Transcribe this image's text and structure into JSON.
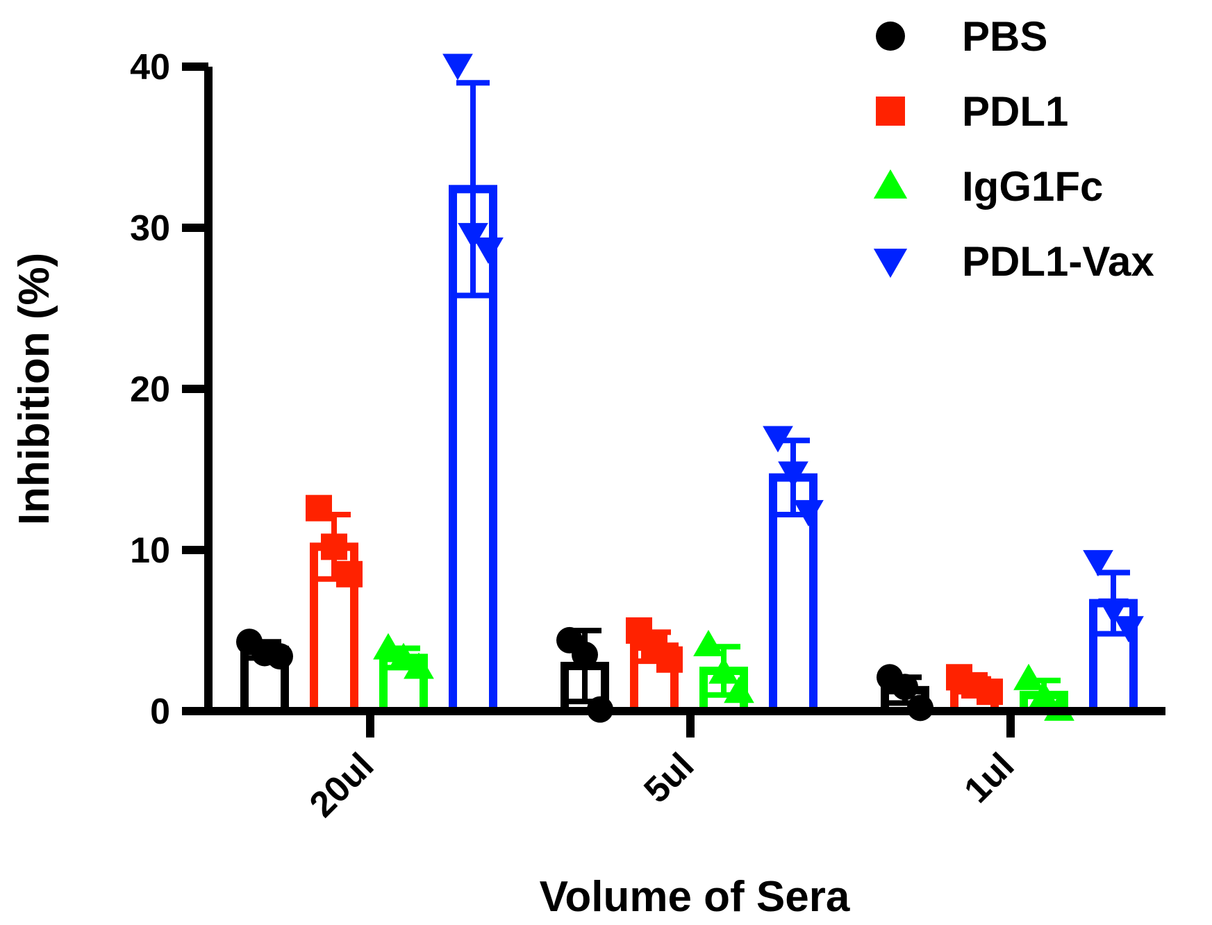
{
  "chart_data": {
    "type": "bar",
    "title": "",
    "xlabel": "Volume of Sera",
    "ylabel": "Inhibition (%)",
    "ylim": [
      0,
      40
    ],
    "yticks": [
      "0",
      "10",
      "20",
      "30",
      "40"
    ],
    "categories": [
      "20ul",
      "5ul",
      "1ul"
    ],
    "legend_position": "top-right",
    "series": [
      {
        "name": "PBS",
        "color": "#000000",
        "marker": "circle",
        "values": [
          3.8,
          2.8,
          1.3
        ],
        "errors": [
          0.5,
          2.2,
          0.8
        ],
        "points": [
          [
            4.3,
            3.6,
            3.4
          ],
          [
            4.4,
            3.5,
            0.1
          ],
          [
            2.1,
            1.5,
            0.2
          ]
        ]
      },
      {
        "name": "PDL1",
        "color": "#ff2200",
        "marker": "square",
        "values": [
          10.2,
          4.0,
          1.6
        ],
        "errors": [
          2.0,
          0.9,
          0.4
        ],
        "points": [
          [
            12.6,
            10.2,
            8.5
          ],
          [
            5.0,
            4.0,
            3.2
          ],
          [
            2.1,
            1.6,
            1.2
          ]
        ]
      },
      {
        "name": "IgG1Fc",
        "color": "#00ff00",
        "marker": "triangle-up",
        "values": [
          3.3,
          2.5,
          1.0
        ],
        "errors": [
          0.6,
          1.5,
          0.9
        ],
        "points": [
          [
            3.9,
            3.3,
            2.7
          ],
          [
            4.1,
            2.4,
            1.2
          ],
          [
            2.0,
            0.9,
            0.1
          ]
        ]
      },
      {
        "name": "PDL1-Vax",
        "color": "#0022ff",
        "marker": "triangle-down",
        "values": [
          32.4,
          14.5,
          6.7
        ],
        "errors": [
          6.6,
          2.3,
          1.9
        ],
        "points": [
          [
            40.1,
            29.6,
            28.7
          ],
          [
            17.0,
            14.8,
            12.4
          ],
          [
            9.3,
            6.3,
            5.2
          ]
        ]
      }
    ]
  }
}
